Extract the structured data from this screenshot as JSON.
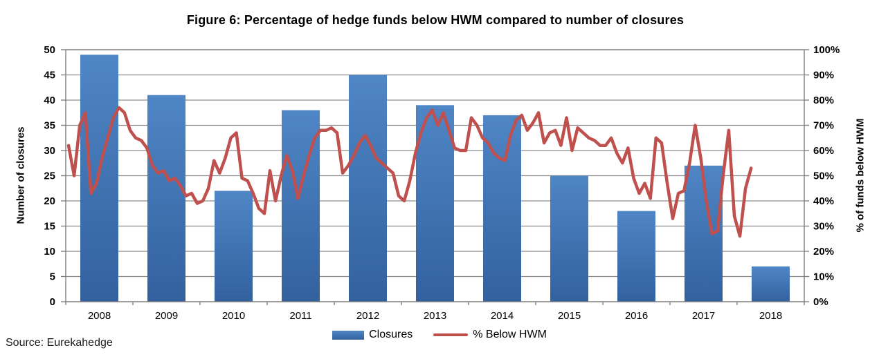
{
  "title": "Figure 6: Percentage of hedge funds below HWM compared to number of closures",
  "source_note": "Source: Eurekahedge",
  "legend": {
    "closures_label": "Closures",
    "pct_label": "% Below HWM"
  },
  "colors": {
    "bar_top": "#4F86C6",
    "bar_bottom": "#33619E",
    "line": "#C0504D",
    "gridline": "#8C8C8C",
    "axis": "#808080"
  },
  "chart_data": {
    "type": "bar",
    "subtype": "combo-bar-line",
    "title": "Figure 6: Percentage of hedge funds below HWM compared to number of closures",
    "categories": [
      "2008",
      "2009",
      "2010",
      "2011",
      "2012",
      "2013",
      "2014",
      "2015",
      "2016",
      "2017",
      "2018"
    ],
    "left_axis": {
      "title": "Number of closures",
      "ticks": [
        "0",
        "5",
        "10",
        "15",
        "20",
        "25",
        "30",
        "35",
        "40",
        "45",
        "50"
      ],
      "min": 0,
      "max": 50,
      "grid": true
    },
    "right_axis": {
      "title": "% of funds below HWM",
      "ticks": [
        "0%",
        "10%",
        "20%",
        "30%",
        "40%",
        "50%",
        "60%",
        "70%",
        "80%",
        "90%",
        "100%"
      ],
      "min": 0,
      "max": 100
    },
    "legend_position": "bottom",
    "series": [
      {
        "name": "Closures",
        "type": "bar",
        "axis": "left",
        "values": [
          49,
          41,
          22,
          38,
          45,
          39,
          37,
          25,
          18,
          27,
          7
        ]
      },
      {
        "name": "% Below HWM",
        "type": "line",
        "axis": "right",
        "x_start": "2008-01",
        "x_frequency": "monthly",
        "values_pct": [
          62,
          50,
          70,
          75,
          43,
          47,
          57,
          65,
          73,
          77,
          75,
          68,
          65,
          64,
          61,
          54,
          51,
          52,
          48,
          49,
          46,
          42,
          43,
          39,
          40,
          45,
          56,
          51,
          57,
          65,
          67,
          49,
          48,
          43,
          37,
          35,
          52,
          40,
          50,
          58,
          52,
          41,
          50,
          58,
          65,
          68,
          68,
          69,
          67,
          51,
          54,
          58,
          63,
          66,
          62,
          57,
          55,
          53,
          51,
          42,
          40,
          48,
          59,
          67,
          73,
          76,
          70,
          75,
          68,
          61,
          60,
          60,
          73,
          70,
          65,
          63,
          59,
          57,
          56,
          66,
          72,
          74,
          68,
          71,
          75,
          63,
          67,
          68,
          62,
          73,
          60,
          69,
          67,
          65,
          64,
          62,
          62,
          65,
          59,
          55,
          61,
          49,
          43,
          47,
          41,
          65,
          63,
          47,
          33,
          43,
          44,
          55,
          70,
          57,
          40,
          27,
          28,
          50,
          68,
          34,
          26,
          45,
          53
        ]
      }
    ]
  }
}
